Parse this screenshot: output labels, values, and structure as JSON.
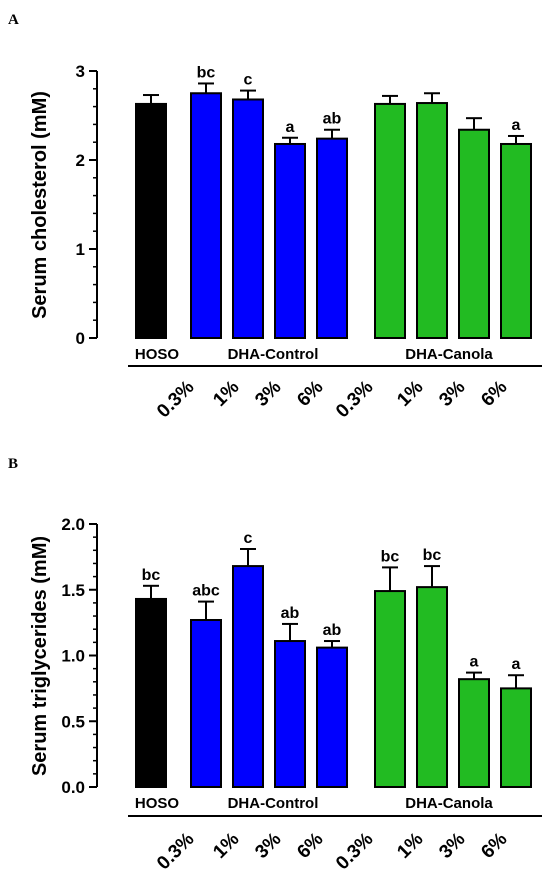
{
  "chart_data": [
    {
      "panel": "A",
      "type": "bar",
      "ylabel": "Serum cholesterol (mM)",
      "ylim": [
        0,
        3
      ],
      "yticks": [
        "0",
        "1",
        "2",
        "3"
      ],
      "groups": [
        "HOSO",
        "DHA-Control",
        "DHA-Canola"
      ],
      "doses": [
        "0.3%",
        "1%",
        "3%",
        "6%",
        "0.3%",
        "1%",
        "3%",
        "6%"
      ],
      "bars": [
        {
          "group": "HOSO",
          "dose": "",
          "value": 2.63,
          "error": 0.1,
          "color": "#000000",
          "sig": ""
        },
        {
          "group": "DHA-Control",
          "dose": "0.3%",
          "value": 2.75,
          "error": 0.11,
          "color": "#0000ff",
          "sig": "bc"
        },
        {
          "group": "DHA-Control",
          "dose": "1%",
          "value": 2.68,
          "error": 0.1,
          "color": "#0000ff",
          "sig": "c"
        },
        {
          "group": "DHA-Control",
          "dose": "3%",
          "value": 2.18,
          "error": 0.07,
          "color": "#0000ff",
          "sig": "a"
        },
        {
          "group": "DHA-Control",
          "dose": "6%",
          "value": 2.24,
          "error": 0.1,
          "color": "#0000ff",
          "sig": "ab"
        },
        {
          "group": "DHA-Canola",
          "dose": "0.3%",
          "value": 2.63,
          "error": 0.09,
          "color": "#22bb22",
          "sig": ""
        },
        {
          "group": "DHA-Canola",
          "dose": "1%",
          "value": 2.64,
          "error": 0.11,
          "color": "#22bb22",
          "sig": ""
        },
        {
          "group": "DHA-Canola",
          "dose": "3%",
          "value": 2.34,
          "error": 0.13,
          "color": "#22bb22",
          "sig": ""
        },
        {
          "group": "DHA-Canola",
          "dose": "6%",
          "value": 2.18,
          "error": 0.09,
          "color": "#22bb22",
          "sig": "a"
        }
      ]
    },
    {
      "panel": "B",
      "type": "bar",
      "ylabel": "Serum triglycerides (mM)",
      "ylim": [
        0,
        2
      ],
      "yticks": [
        "0.0",
        "0.5",
        "1.0",
        "1.5",
        "2.0"
      ],
      "groups": [
        "HOSO",
        "DHA-Control",
        "DHA-Canola"
      ],
      "doses": [
        "0.3%",
        "1%",
        "3%",
        "6%",
        "0.3%",
        "1%",
        "3%",
        "6%"
      ],
      "bars": [
        {
          "group": "HOSO",
          "dose": "",
          "value": 1.43,
          "error": 0.1,
          "color": "#000000",
          "sig": "bc"
        },
        {
          "group": "DHA-Control",
          "dose": "0.3%",
          "value": 1.27,
          "error": 0.14,
          "color": "#0000ff",
          "sig": "abc"
        },
        {
          "group": "DHA-Control",
          "dose": "1%",
          "value": 1.68,
          "error": 0.13,
          "color": "#0000ff",
          "sig": "c"
        },
        {
          "group": "DHA-Control",
          "dose": "3%",
          "value": 1.11,
          "error": 0.13,
          "color": "#0000ff",
          "sig": "ab"
        },
        {
          "group": "DHA-Control",
          "dose": "6%",
          "value": 1.06,
          "error": 0.05,
          "color": "#0000ff",
          "sig": "ab"
        },
        {
          "group": "DHA-Canola",
          "dose": "0.3%",
          "value": 1.49,
          "error": 0.18,
          "color": "#22bb22",
          "sig": "bc"
        },
        {
          "group": "DHA-Canola",
          "dose": "1%",
          "value": 1.52,
          "error": 0.16,
          "color": "#22bb22",
          "sig": "bc"
        },
        {
          "group": "DHA-Canola",
          "dose": "3%",
          "value": 0.82,
          "error": 0.05,
          "color": "#22bb22",
          "sig": "a"
        },
        {
          "group": "DHA-Canola",
          "dose": "6%",
          "value": 0.75,
          "error": 0.1,
          "color": "#22bb22",
          "sig": "a"
        }
      ]
    }
  ]
}
